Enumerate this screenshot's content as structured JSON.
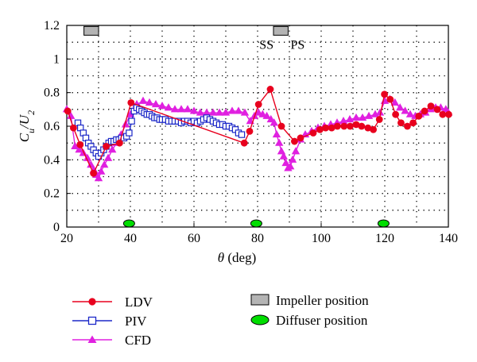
{
  "chart_data": {
    "type": "line",
    "xlabel": "θ (deg)",
    "ylabel": "Cu/U2",
    "xlim": [
      20,
      140
    ],
    "ylim": [
      0,
      1.2
    ],
    "x_ticks": [
      20,
      40,
      60,
      80,
      100,
      120,
      140
    ],
    "y_ticks": [
      0,
      0.2,
      0.4,
      0.6,
      0.8,
      1,
      1.2
    ],
    "y_tick_labels": [
      "0",
      "0.2",
      "0.4",
      "0.6",
      "0.8",
      "1",
      "1.2"
    ],
    "grid": "dotted",
    "annotations": [
      {
        "text": "SS",
        "x": 82.8,
        "y": 1.09
      },
      {
        "text": "PS",
        "x": 92.6,
        "y": 1.09
      }
    ],
    "impeller_positions": [
      {
        "start": 25.4,
        "end": 30.0,
        "y": 1.17
      },
      {
        "start": 85.0,
        "end": 89.6,
        "y": 1.17
      }
    ],
    "diffuser_positions": [
      39.6,
      79.6,
      119.6
    ],
    "series": [
      {
        "name": "LDV",
        "color": "#e8001e",
        "marker": "circle",
        "x": [
          20.3,
          22.1,
          24.2,
          28.4,
          32.4,
          36.6,
          40.2,
          75.8,
          77.5,
          80.3,
          84.0,
          87.5,
          91.6,
          93.5,
          97.5,
          99.6,
          101.4,
          103.3,
          105.1,
          107.2,
          109.1,
          111.0,
          112.7,
          114.7,
          116.4,
          118.3,
          119.9,
          121.7,
          123.4,
          125.1,
          127.1,
          128.9,
          130.7,
          132.5,
          134.5,
          136.5,
          138.2,
          140.1
        ],
        "y": [
          0.69,
          0.59,
          0.49,
          0.32,
          0.48,
          0.5,
          0.74,
          0.5,
          0.57,
          0.73,
          0.82,
          0.6,
          0.51,
          0.53,
          0.56,
          0.58,
          0.59,
          0.59,
          0.6,
          0.6,
          0.6,
          0.61,
          0.6,
          0.59,
          0.58,
          0.64,
          0.79,
          0.76,
          0.67,
          0.62,
          0.6,
          0.62,
          0.66,
          0.69,
          0.72,
          0.7,
          0.67,
          0.67
        ]
      },
      {
        "name": "PIV",
        "color": "#1c28c8",
        "marker": "square",
        "x": [
          23.5,
          24.3,
          25.2,
          26.0,
          26.8,
          27.6,
          28.4,
          29.2,
          30.0,
          30.8,
          31.6,
          32.4,
          33.2,
          34.0,
          34.8,
          35.6,
          36.4,
          37.2,
          38.0,
          38.8,
          39.6,
          40.4,
          41.2,
          42.0,
          42.8,
          43.6,
          44.4,
          45.2,
          46.0,
          46.8,
          47.6,
          48.4,
          49.2,
          50.0,
          51.0,
          52.0,
          53.0,
          54.0,
          55.0,
          56.0,
          57.0,
          58.0,
          59.0,
          60.0,
          61.0,
          62.0,
          63.0,
          64.0,
          65.0,
          66.0,
          67.0,
          68.0,
          69.0,
          70.0,
          71.0,
          72.0,
          73.0,
          74.0,
          75.0
        ],
        "y": [
          0.62,
          0.59,
          0.56,
          0.53,
          0.5,
          0.48,
          0.46,
          0.44,
          0.42,
          0.44,
          0.46,
          0.48,
          0.5,
          0.51,
          0.51,
          0.52,
          0.52,
          0.53,
          0.53,
          0.54,
          0.56,
          0.63,
          0.69,
          0.71,
          0.7,
          0.69,
          0.68,
          0.67,
          0.67,
          0.66,
          0.65,
          0.65,
          0.64,
          0.64,
          0.64,
          0.63,
          0.63,
          0.63,
          0.63,
          0.62,
          0.63,
          0.63,
          0.62,
          0.63,
          0.62,
          0.63,
          0.64,
          0.65,
          0.64,
          0.63,
          0.62,
          0.61,
          0.61,
          0.6,
          0.6,
          0.59,
          0.58,
          0.56,
          0.55
        ]
      },
      {
        "name": "CFD",
        "color": "#e020e0",
        "marker": "triangle",
        "x": [
          20.0,
          21.3,
          22.6,
          23.9,
          25.2,
          26.5,
          27.6,
          28.5,
          29.3,
          30.0,
          30.8,
          31.8,
          33.0,
          34.3,
          35.7,
          37.1,
          38.5,
          40.0,
          42.0,
          44.0,
          46.0,
          48.0,
          50.0,
          52.0,
          54.0,
          56.0,
          58.0,
          60.0,
          62.0,
          64.0,
          66.0,
          68.0,
          70.0,
          72.0,
          74.0,
          76.0,
          77.7,
          79.0,
          80.3,
          81.6,
          82.9,
          84.2,
          85.2,
          86.0,
          86.8,
          87.5,
          88.2,
          88.9,
          89.6,
          90.3,
          91.0,
          92.0,
          93.5,
          95.0,
          97.0,
          99.0,
          101.0,
          103.0,
          105.0,
          107.0,
          109.0,
          111.0,
          113.0,
          115.0,
          117.0,
          118.5,
          120.0,
          121.6,
          123.2,
          124.8,
          126.4,
          128.0,
          129.6,
          131.2,
          132.8,
          134.4,
          136.0,
          137.6,
          139.2,
          140.0
        ],
        "y": [
          0.7,
          0.66,
          0.48,
          0.46,
          0.44,
          0.41,
          0.37,
          0.34,
          0.31,
          0.29,
          0.33,
          0.37,
          0.41,
          0.46,
          0.5,
          0.55,
          0.61,
          0.67,
          0.73,
          0.75,
          0.74,
          0.73,
          0.72,
          0.71,
          0.7,
          0.7,
          0.7,
          0.69,
          0.68,
          0.68,
          0.68,
          0.68,
          0.68,
          0.69,
          0.69,
          0.68,
          0.63,
          0.66,
          0.68,
          0.67,
          0.66,
          0.64,
          0.62,
          0.55,
          0.5,
          0.45,
          0.42,
          0.38,
          0.35,
          0.36,
          0.4,
          0.45,
          0.52,
          0.55,
          0.57,
          0.59,
          0.6,
          0.61,
          0.62,
          0.63,
          0.64,
          0.65,
          0.65,
          0.66,
          0.67,
          0.68,
          0.75,
          0.76,
          0.74,
          0.71,
          0.69,
          0.67,
          0.66,
          0.67,
          0.68,
          0.7,
          0.71,
          0.71,
          0.7,
          0.68
        ]
      }
    ]
  },
  "legend": {
    "series_labels": [
      "LDV",
      "PIV",
      "CFD"
    ],
    "impeller_label": "Impeller position",
    "diffuser_label": "Diffuser position",
    "impeller_fill": "#b4b4b4",
    "diffuser_fill": "#00dd00"
  }
}
